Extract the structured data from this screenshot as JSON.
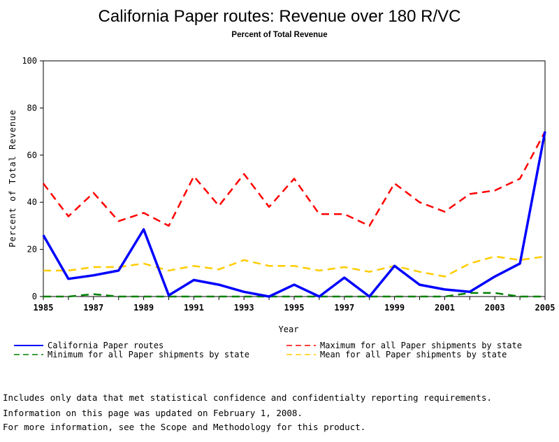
{
  "chart_data": {
    "type": "line",
    "title": "California Paper routes: Revenue over 180 R/VC",
    "subtitle": "Percent of Total Revenue",
    "xlabel": "Year",
    "ylabel": "Percent of Total Revenue",
    "xlim": [
      1985,
      2005
    ],
    "ylim": [
      0,
      100
    ],
    "x_ticks": [
      "1985",
      "1987",
      "1989",
      "1991",
      "1993",
      "1995",
      "1997",
      "1999",
      "2001",
      "2003",
      "2005"
    ],
    "y_ticks": [
      "0",
      "20",
      "40",
      "60",
      "80",
      "100"
    ],
    "x": [
      1985,
      1986,
      1987,
      1988,
      1989,
      1990,
      1991,
      1992,
      1993,
      1994,
      1995,
      1996,
      1997,
      1998,
      1999,
      2000,
      2001,
      2002,
      2003,
      2004,
      2005
    ],
    "legend_placement": "bottom",
    "series": [
      {
        "name": "California Paper routes",
        "color": "#0000ff",
        "style": "solid",
        "values": [
          26,
          7.5,
          9,
          11,
          28.5,
          0.5,
          7,
          5,
          2,
          0,
          5,
          0,
          8,
          0,
          13,
          5,
          3,
          2,
          8.5,
          14,
          70
        ]
      },
      {
        "name": "Maximum for all Paper shipments by state",
        "color": "#ff0000",
        "style": "dashed",
        "values": [
          48,
          34,
          44,
          32,
          35.5,
          30,
          51,
          38.5,
          52,
          38,
          50,
          35,
          35,
          30,
          48,
          40,
          36,
          43.5,
          45,
          50,
          70
        ]
      },
      {
        "name": "Minimum for all Paper shipments by state",
        "color": "#008000",
        "style": "dashed",
        "values": [
          0,
          0,
          1,
          0,
          0,
          0,
          0,
          0,
          0,
          0,
          0,
          0,
          0,
          0,
          0,
          0,
          0,
          1.5,
          1.5,
          0,
          0
        ]
      },
      {
        "name": "Mean for all Paper shipments by state",
        "color": "#ffcc00",
        "style": "dashed",
        "values": [
          11,
          11,
          12.5,
          12.5,
          14,
          11,
          13,
          11.5,
          15.5,
          13,
          13,
          11,
          12.5,
          10.5,
          13,
          10.5,
          8.5,
          14,
          17,
          15.5,
          17
        ]
      }
    ]
  },
  "notes": {
    "line1": "Includes only data that met statistical confidence and confidentialty reporting requirements.",
    "line2": "For more information, see the Scope and Methodology for this product.",
    "updated": "Information on this page was updated on February 1, 2008."
  }
}
